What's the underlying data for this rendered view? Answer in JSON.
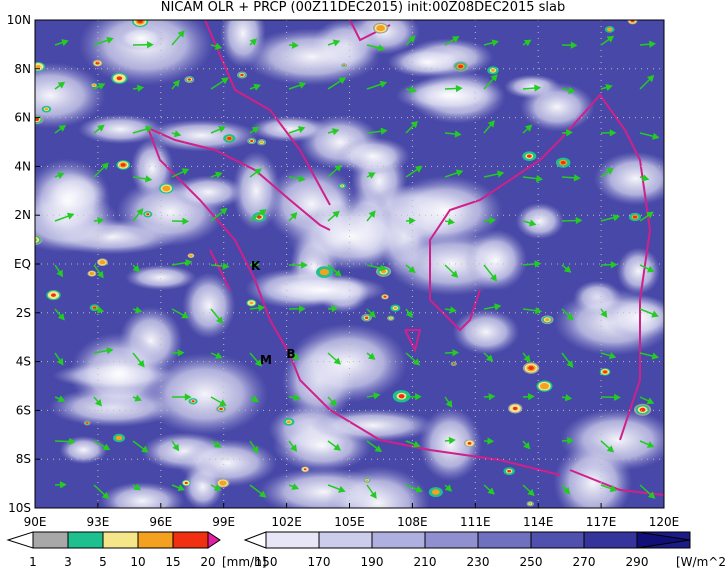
{
  "title": "NICAM OLR + PRCP (00Z11DEC2015) init:00Z08DEC2015 slab",
  "lat_labels": [
    "10N",
    "8N",
    "6N",
    "4N",
    "2N",
    "EQ",
    "2S",
    "4S",
    "6S",
    "8S",
    "10S"
  ],
  "lon_labels": [
    "90E",
    "93E",
    "96E",
    "99E",
    "102E",
    "105E",
    "108E",
    "111E",
    "114E",
    "117E",
    "120E"
  ],
  "markers": [
    "K",
    "M",
    "B"
  ],
  "precip_colorbar": {
    "labels": [
      "1",
      "3",
      "5",
      "10",
      "15",
      "20"
    ],
    "unit": "[mm/h]"
  },
  "olr_colorbar": {
    "labels": [
      "150",
      "170",
      "190",
      "210",
      "230",
      "250",
      "270",
      "290"
    ],
    "unit": "[W/m^2]"
  }
}
